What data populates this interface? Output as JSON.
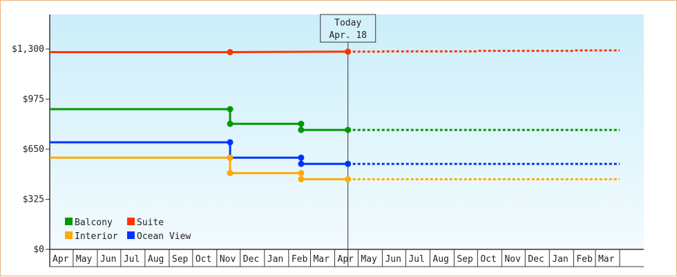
{
  "chart_data": {
    "type": "line",
    "title": "",
    "xlabel": "",
    "ylabel": "",
    "ylim": [
      0,
      1300
    ],
    "y_ticks": [
      {
        "value": 0,
        "label": "$0"
      },
      {
        "value": 325,
        "label": "$325"
      },
      {
        "value": 650,
        "label": "$650"
      },
      {
        "value": 975,
        "label": "$975"
      },
      {
        "value": 1300,
        "label": "$1,300"
      }
    ],
    "x_start": "2017-04-01",
    "x_end": "2019-04-01",
    "x_ticks": [
      "Apr",
      "May",
      "Jun",
      "Jul",
      "Aug",
      "Sep",
      "Oct",
      "Nov",
      "Dec",
      "Jan",
      "Feb",
      "Mar",
      "Apr",
      "May",
      "Jun",
      "Jul",
      "Aug",
      "Sep",
      "Oct",
      "Nov",
      "Dec",
      "Jan",
      "Feb",
      "Mar"
    ],
    "today": {
      "date": "2018-04-18",
      "label_top": "Today",
      "label_bottom": "Apr. 18"
    },
    "grid": true,
    "legend_position": "bottom-left",
    "series": [
      {
        "name": "Suite",
        "color": "#ff3300",
        "points": [
          [
            "2017-04-01",
            1280
          ],
          [
            "2017-11-18",
            1280
          ],
          [
            "2018-04-18",
            1283
          ]
        ],
        "markers": [
          [
            "2017-11-18",
            1280
          ],
          [
            "2018-04-18",
            1283
          ]
        ],
        "forecast": [
          [
            "2018-04-18",
            1283
          ],
          [
            "2018-06-01",
            1283
          ],
          [
            "2018-06-03",
            1285
          ],
          [
            "2018-10-01",
            1285
          ],
          [
            "2018-10-03",
            1288
          ],
          [
            "2019-02-01",
            1288
          ],
          [
            "2019-02-03",
            1291
          ],
          [
            "2019-04-01",
            1291
          ]
        ]
      },
      {
        "name": "Balcony",
        "color": "#009900",
        "points": [
          [
            "2017-04-01",
            910
          ],
          [
            "2017-11-18",
            910
          ],
          [
            "2017-11-18",
            815
          ],
          [
            "2018-02-17",
            815
          ],
          [
            "2018-02-17",
            775
          ],
          [
            "2018-04-18",
            775
          ]
        ],
        "markers": [
          [
            "2017-11-18",
            910
          ],
          [
            "2017-11-18",
            815
          ],
          [
            "2018-02-17",
            815
          ],
          [
            "2018-02-17",
            775
          ],
          [
            "2018-04-18",
            775
          ]
        ],
        "forecast": [
          [
            "2018-04-18",
            775
          ],
          [
            "2019-04-01",
            775
          ]
        ]
      },
      {
        "name": "Ocean View",
        "color": "#0033ff",
        "points": [
          [
            "2017-04-01",
            695
          ],
          [
            "2017-11-18",
            695
          ],
          [
            "2017-11-18",
            595
          ],
          [
            "2018-02-17",
            595
          ],
          [
            "2018-02-17",
            555
          ],
          [
            "2018-04-18",
            555
          ]
        ],
        "markers": [
          [
            "2017-11-18",
            695
          ],
          [
            "2017-11-18",
            595
          ],
          [
            "2018-02-17",
            595
          ],
          [
            "2018-02-17",
            555
          ],
          [
            "2018-04-18",
            555
          ]
        ],
        "forecast": [
          [
            "2018-04-18",
            555
          ],
          [
            "2019-04-01",
            555
          ]
        ]
      },
      {
        "name": "Interior",
        "color": "#ffaa00",
        "points": [
          [
            "2017-04-01",
            595
          ],
          [
            "2017-11-18",
            595
          ],
          [
            "2017-11-18",
            495
          ],
          [
            "2018-02-17",
            495
          ],
          [
            "2018-02-17",
            455
          ],
          [
            "2018-04-18",
            455
          ]
        ],
        "markers": [
          [
            "2017-11-18",
            595
          ],
          [
            "2017-11-18",
            495
          ],
          [
            "2018-02-17",
            495
          ],
          [
            "2018-02-17",
            455
          ],
          [
            "2018-04-18",
            455
          ]
        ],
        "forecast": [
          [
            "2018-04-18",
            455
          ],
          [
            "2019-04-01",
            455
          ]
        ]
      }
    ],
    "legend": [
      {
        "name": "Balcony",
        "color": "#009900"
      },
      {
        "name": "Suite",
        "color": "#ff3300"
      },
      {
        "name": "Interior",
        "color": "#ffaa00"
      },
      {
        "name": "Ocean View",
        "color": "#0033ff"
      }
    ]
  }
}
